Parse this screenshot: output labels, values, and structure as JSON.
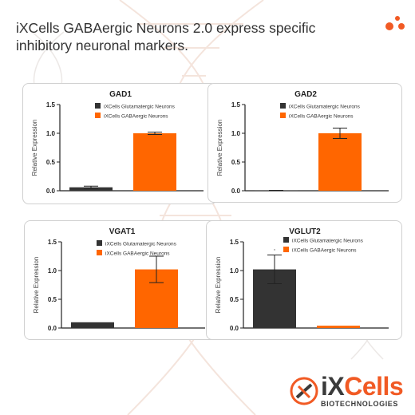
{
  "headline": {
    "line1": "iXCells GABAergic Neurons 2.0 express specific",
    "line2": "inhibitory neuronal markers."
  },
  "colors": {
    "glutamatergic": "#333333",
    "gabaergic": "#ff6600",
    "accent": "#f15a24"
  },
  "logo": {
    "brand_prefix": "iX",
    "brand_suffix": "Cells",
    "tagline": "BIOTECHNOLOGIES"
  },
  "chart_data": [
    {
      "type": "bar",
      "title": "GAD1",
      "ylabel": "Relative Expression",
      "ylim": [
        0,
        1.5
      ],
      "yticks": [
        "0.0",
        "0.5",
        "1.0",
        "1.5"
      ],
      "legend": [
        "iXCells Glutamatergic Neurons",
        "iXCells GABAergic Neurons"
      ],
      "legend_position": "top-left",
      "values": [
        0.06,
        1.0
      ],
      "errors": [
        0.02,
        0.02
      ],
      "annotations": []
    },
    {
      "type": "bar",
      "title": "GAD2",
      "ylabel": "Relative Expression",
      "ylim": [
        0,
        1.5
      ],
      "yticks": [
        "0.0",
        "0.5",
        "1.0",
        "1.5"
      ],
      "legend": [
        "iXCells Glutamatergic Neurons",
        "iXCells GABAergic Neurons"
      ],
      "legend_position": "top-left",
      "values": [
        0.005,
        1.0
      ],
      "errors": [
        0.002,
        0.09
      ],
      "annotations": []
    },
    {
      "type": "bar",
      "title": "VGAT1",
      "ylabel": "Relative Expression",
      "ylim": [
        0,
        1.5
      ],
      "yticks": [
        "0.0",
        "0.5",
        "1.0",
        "1.5"
      ],
      "legend": [
        "iXCells Glutamatergic Neurons",
        "iXCells GABAergic Neurons"
      ],
      "legend_position": "top-left",
      "values": [
        0.1,
        1.02
      ],
      "errors": [
        0.0,
        0.23
      ],
      "annotations": []
    },
    {
      "type": "bar",
      "title": "VGLUT2",
      "ylabel": "Relative Expression",
      "ylim": [
        0,
        1.5
      ],
      "yticks": [
        "0.0",
        "0.5",
        "1.0",
        "1.5"
      ],
      "legend": [
        "iXCells Glutamatergic Neurons",
        "iXCells GABAergic Neurons"
      ],
      "legend_position": "top-left",
      "values": [
        1.02,
        0.04
      ],
      "errors": [
        0.25,
        0.0
      ],
      "annotations": [
        "."
      ]
    }
  ]
}
